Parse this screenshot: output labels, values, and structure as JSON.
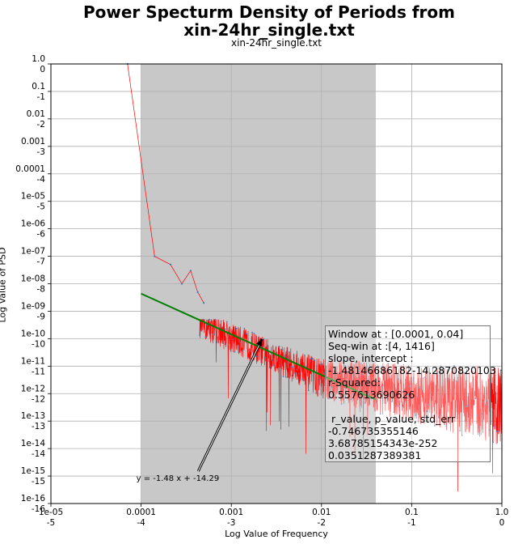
{
  "chart_data": {
    "type": "line",
    "title_line1": "Power Specturm Density of Periods from",
    "title_line2": "xin-24hr_single.txt",
    "subtitle": "xin-24hr_single.txt",
    "xlabel": "Log Value of Frequency",
    "ylabel": "Log Value of PSD",
    "xscale": "log",
    "yscale": "log",
    "xlim": [
      1e-05,
      1.0
    ],
    "ylim": [
      1e-16,
      1.0
    ],
    "grid": true,
    "x_ticks": [
      {
        "value": 1e-05,
        "label": "1e-05",
        "log_label": "-5"
      },
      {
        "value": 0.0001,
        "label": "0.0001",
        "log_label": "-4"
      },
      {
        "value": 0.001,
        "label": "0.001",
        "log_label": "-3"
      },
      {
        "value": 0.01,
        "label": "0.01",
        "log_label": "-2"
      },
      {
        "value": 0.1,
        "label": "0.1",
        "log_label": "-1"
      },
      {
        "value": 1.0,
        "label": "1.0",
        "log_label": "0"
      }
    ],
    "y_ticks": [
      {
        "value": 1.0,
        "label": "1.0",
        "log_label": "0"
      },
      {
        "value": 0.1,
        "label": "0.1",
        "log_label": "-1"
      },
      {
        "value": 0.01,
        "label": "0.01",
        "log_label": "-2"
      },
      {
        "value": 0.001,
        "label": "0.001",
        "log_label": "-3"
      },
      {
        "value": 0.0001,
        "label": "0.0001",
        "log_label": "-4"
      },
      {
        "value": 1e-05,
        "label": "1e-05",
        "log_label": "-5"
      },
      {
        "value": 1e-06,
        "label": "1e-06",
        "log_label": "-6"
      },
      {
        "value": 1e-07,
        "label": "1e-07",
        "log_label": "-7"
      },
      {
        "value": 1e-08,
        "label": "1e-08",
        "log_label": "-8"
      },
      {
        "value": 1e-09,
        "label": "1e-09",
        "log_label": "-9"
      },
      {
        "value": 1e-10,
        "label": "1e-10",
        "log_label": "-10"
      },
      {
        "value": 1e-11,
        "label": "1e-11",
        "log_label": "-11"
      },
      {
        "value": 1e-12,
        "label": "1e-12",
        "log_label": "-12"
      },
      {
        "value": 1e-13,
        "label": "1e-13",
        "log_label": "-13"
      },
      {
        "value": 1e-14,
        "label": "1e-14",
        "log_label": "-14"
      },
      {
        "value": 1e-15,
        "label": "1e-15",
        "log_label": "-15"
      },
      {
        "value": 1e-16,
        "label": "1e-16",
        "log_label": "-16"
      }
    ],
    "window": [
      0.0001,
      0.04
    ],
    "psd_series": {
      "color": "#ff0000",
      "x": [
        7.07e-05,
        0.000141,
        0.000212,
        0.000283,
        0.000354,
        0.000424,
        0.000495
      ],
      "y": [
        1.0,
        1e-07,
        5e-08,
        1e-08,
        3e-08,
        5e-09,
        2e-09
      ]
    },
    "fit_line": {
      "color": "#008000",
      "slope": -1.48146686182,
      "intercept": -14.2870820103,
      "x_range": [
        0.0001,
        0.04
      ]
    },
    "annotation": {
      "text": "y = -1.48 x + -14.29",
      "point": [
        0.0022,
        1e-10
      ],
      "text_pos": [
        0.00043,
        1e-15
      ]
    },
    "stats_lines": [
      "Window at : [0.0001, 0.04]",
      "Seq-win at :[4, 1416]",
      "slope, intercept :",
      "-1.48146686182-14.2870820103",
      "r-Squared:",
      "0.557613690626",
      "",
      " r_value, p_value, std_err",
      "-0.746735355146",
      "3.68785154343e-252",
      "0.0351287389381"
    ],
    "colors": {
      "window": "#c8c8c8",
      "noise": "#ff0000",
      "markers": "#4a7ab5",
      "stats_bg": "#ff6060"
    }
  }
}
